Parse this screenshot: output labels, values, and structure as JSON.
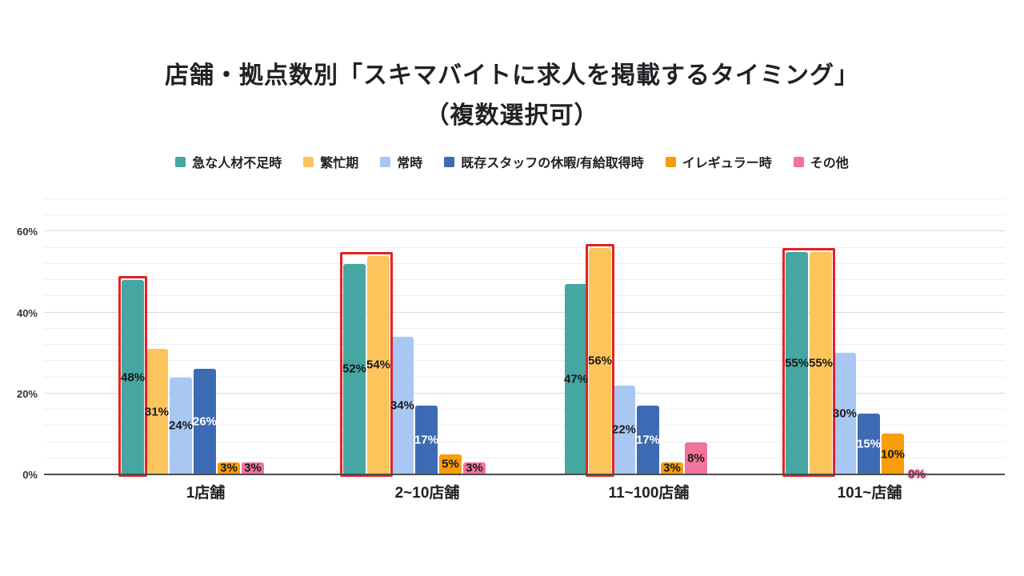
{
  "page": {
    "title_line1": "店舗・拠点数別「スキマバイトに求人を掲載するタイミング」",
    "title_line2": "（複数選択可）"
  },
  "chart_data": {
    "type": "bar",
    "title": "店舗・拠点数別「スキマバイトに求人を掲載するタイミング」",
    "subtitle": "（複数選択可）",
    "categories": [
      "1店舗",
      "2~10店舗",
      "11~100店舗",
      "101~店舗"
    ],
    "series": [
      {
        "name": "急な人材不足時",
        "color": "#45A6A2",
        "values": [
          48,
          52,
          47,
          55
        ]
      },
      {
        "name": "繁忙期",
        "color": "#FCC55C",
        "values": [
          31,
          54,
          56,
          55
        ]
      },
      {
        "name": "常時",
        "color": "#A9C7F3",
        "values": [
          24,
          34,
          22,
          30
        ]
      },
      {
        "name": "既存スタッフの休暇/有給取得時",
        "color": "#3D6BB3",
        "values": [
          26,
          17,
          17,
          15
        ]
      },
      {
        "name": "イレギュラー時",
        "color": "#F99D0B",
        "values": [
          3,
          5,
          3,
          10
        ]
      },
      {
        "name": "その他",
        "color": "#F2749B",
        "values": [
          3,
          3,
          8,
          0
        ]
      }
    ],
    "value_suffix": "%",
    "ylim": [
      0,
      68
    ],
    "yticks": [
      0,
      20,
      40,
      60
    ],
    "minor_grid_step": 4,
    "grid": true,
    "legend_position": "top",
    "label_text_colors": [
      "#1a1a1a",
      "#1a1a1a",
      "#1a1a1a",
      "#ffffff",
      "#1a1a1a",
      "#1a1a1a"
    ],
    "highlight_color": "#E32222",
    "highlights": [
      {
        "category_index": 0,
        "series_start": 0,
        "series_end": 0
      },
      {
        "category_index": 1,
        "series_start": 0,
        "series_end": 1
      },
      {
        "category_index": 2,
        "series_start": 1,
        "series_end": 1
      },
      {
        "category_index": 3,
        "series_start": 0,
        "series_end": 1
      }
    ]
  }
}
